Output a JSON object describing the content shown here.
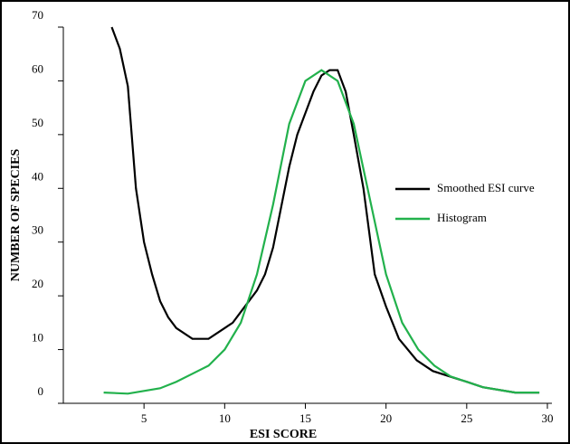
{
  "chart_data": {
    "type": "line",
    "xlabel": "ESI SCORE",
    "ylabel": "NUMBER OF SPECIES",
    "xlim": [
      0,
      30
    ],
    "ylim": [
      0,
      70
    ],
    "xticks": [
      5,
      10,
      15,
      20,
      25,
      30
    ],
    "yticks": [
      0,
      10,
      20,
      30,
      40,
      50,
      60,
      70
    ],
    "legend": "right",
    "series": [
      {
        "name": "Smoothed ESI curve",
        "color": "#000000",
        "x": [
          3,
          3.5,
          4,
          4.5,
          5,
          5.5,
          6,
          6.5,
          7,
          8,
          9,
          10,
          10.5,
          11,
          12,
          12.5,
          13,
          14,
          14.5,
          15,
          15.5,
          16,
          16.5,
          17,
          17.5,
          18,
          18.6,
          19.3,
          20,
          20.8,
          21.9,
          22.9,
          25,
          26,
          28,
          29.5
        ],
        "values": [
          70,
          66,
          59,
          40,
          30,
          24,
          19,
          16,
          14,
          12,
          12,
          14,
          15,
          17,
          21,
          24,
          29,
          44,
          50,
          54,
          58,
          61,
          62,
          62,
          58,
          50,
          40,
          24,
          18,
          12,
          8,
          6,
          4,
          3,
          2,
          2
        ]
      },
      {
        "name": "Histogram",
        "color": "#22b14c",
        "x": [
          2.5,
          4,
          6,
          7,
          8,
          9,
          10,
          11,
          12,
          13,
          14,
          15,
          16,
          17,
          18,
          19,
          20,
          21,
          22,
          23,
          24,
          26,
          28,
          29.5
        ],
        "values": [
          2,
          1.8,
          2.8,
          4,
          5.5,
          7,
          10,
          15,
          24,
          37,
          52,
          60,
          62,
          60,
          52,
          38,
          24,
          15,
          10,
          7,
          5,
          3,
          2,
          2
        ]
      }
    ]
  }
}
